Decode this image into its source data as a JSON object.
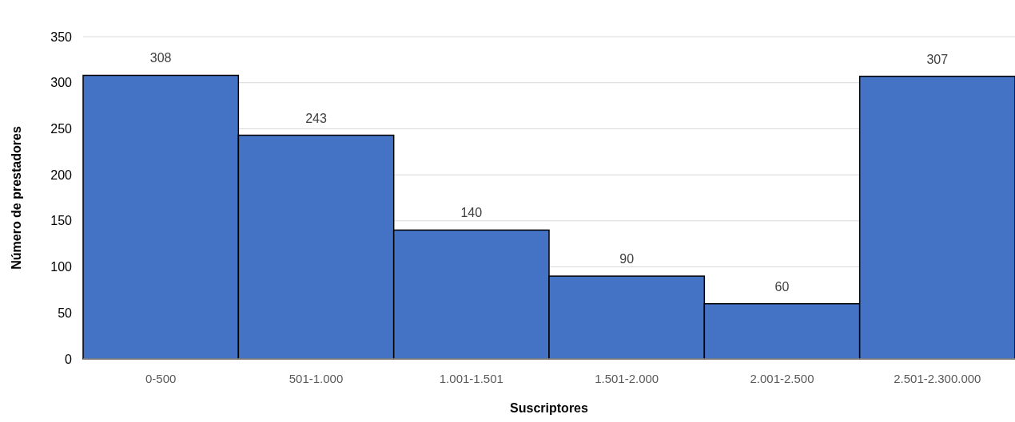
{
  "chart_data": {
    "type": "bar",
    "xlabel": "Suscriptores",
    "ylabel": "Número de prestadores",
    "categories": [
      "0-500",
      "501-1.000",
      "1.001-1.501",
      "1.501-2.000",
      "2.001-2.500",
      "2.501-2.300.000"
    ],
    "values": [
      308,
      243,
      140,
      90,
      60,
      307
    ],
    "color": "#4472c4",
    "ylim": [
      0,
      350
    ],
    "yticks": [
      0,
      50,
      100,
      150,
      200,
      250,
      300,
      350
    ],
    "grid": "y",
    "data_labels": true
  }
}
